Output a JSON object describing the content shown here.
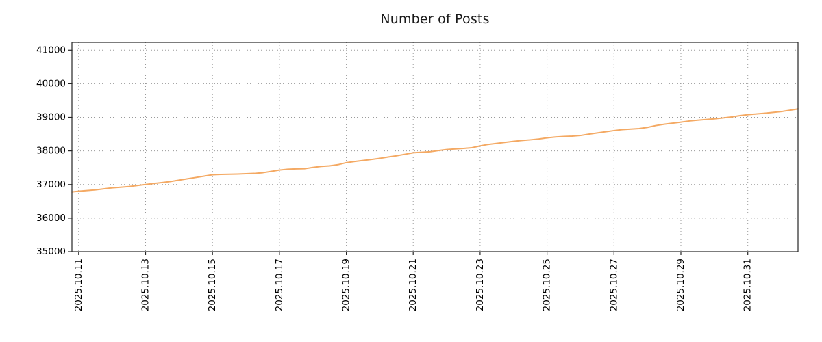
{
  "chart_data": {
    "type": "line",
    "title": "Number of Posts",
    "xlabel": "",
    "ylabel": "",
    "grid": true,
    "legend": false,
    "colors": {
      "line": "#f4a963",
      "grid": "#9a9a9a",
      "axis": "#262626",
      "text": "#000000",
      "background": "#ffffff"
    },
    "x_axis": {
      "unit": "days since 2025.10.11",
      "min": -0.2,
      "max": 21.5,
      "ticks": [
        {
          "t": 0,
          "label": "2025.10.11"
        },
        {
          "t": 2,
          "label": "2025.10.13"
        },
        {
          "t": 4,
          "label": "2025.10.15"
        },
        {
          "t": 6,
          "label": "2025.10.17"
        },
        {
          "t": 8,
          "label": "2025.10.19"
        },
        {
          "t": 10,
          "label": "2025.10.21"
        },
        {
          "t": 12,
          "label": "2025.10.23"
        },
        {
          "t": 14,
          "label": "2025.10.25"
        },
        {
          "t": 16,
          "label": "2025.10.27"
        },
        {
          "t": 18,
          "label": "2025.10.29"
        },
        {
          "t": 20,
          "label": "2025.10.31"
        }
      ]
    },
    "y_axis": {
      "min": 35000,
      "max": 41230,
      "ticks": [
        35000,
        36000,
        37000,
        38000,
        39000,
        40000,
        41000
      ]
    },
    "series": [
      {
        "name": "Number of Posts",
        "points": [
          [
            -0.2,
            36780
          ],
          [
            0,
            36800
          ],
          [
            0.25,
            36820
          ],
          [
            0.5,
            36840
          ],
          [
            0.75,
            36870
          ],
          [
            1,
            36900
          ],
          [
            1.25,
            36920
          ],
          [
            1.5,
            36940
          ],
          [
            1.75,
            36970
          ],
          [
            2,
            37000
          ],
          [
            2.25,
            37030
          ],
          [
            2.5,
            37060
          ],
          [
            2.75,
            37090
          ],
          [
            3,
            37130
          ],
          [
            3.25,
            37170
          ],
          [
            3.5,
            37210
          ],
          [
            3.75,
            37250
          ],
          [
            4,
            37290
          ],
          [
            4.25,
            37300
          ],
          [
            4.5,
            37305
          ],
          [
            4.75,
            37310
          ],
          [
            5,
            37320
          ],
          [
            5.25,
            37330
          ],
          [
            5.5,
            37350
          ],
          [
            5.75,
            37390
          ],
          [
            6,
            37430
          ],
          [
            6.25,
            37455
          ],
          [
            6.5,
            37465
          ],
          [
            6.75,
            37470
          ],
          [
            7,
            37510
          ],
          [
            7.25,
            37540
          ],
          [
            7.5,
            37555
          ],
          [
            7.75,
            37590
          ],
          [
            8,
            37650
          ],
          [
            8.25,
            37685
          ],
          [
            8.5,
            37715
          ],
          [
            8.75,
            37745
          ],
          [
            9,
            37780
          ],
          [
            9.25,
            37820
          ],
          [
            9.5,
            37855
          ],
          [
            9.75,
            37900
          ],
          [
            10,
            37945
          ],
          [
            10.25,
            37960
          ],
          [
            10.5,
            37975
          ],
          [
            10.75,
            38010
          ],
          [
            11,
            38040
          ],
          [
            11.25,
            38060
          ],
          [
            11.5,
            38075
          ],
          [
            11.75,
            38095
          ],
          [
            12,
            38150
          ],
          [
            12.25,
            38195
          ],
          [
            12.5,
            38225
          ],
          [
            12.75,
            38255
          ],
          [
            13,
            38285
          ],
          [
            13.25,
            38310
          ],
          [
            13.5,
            38330
          ],
          [
            13.75,
            38355
          ],
          [
            14,
            38390
          ],
          [
            14.25,
            38415
          ],
          [
            14.5,
            38430
          ],
          [
            14.75,
            38440
          ],
          [
            15,
            38460
          ],
          [
            15.25,
            38500
          ],
          [
            15.5,
            38535
          ],
          [
            15.75,
            38570
          ],
          [
            16,
            38605
          ],
          [
            16.25,
            38635
          ],
          [
            16.5,
            38650
          ],
          [
            16.75,
            38665
          ],
          [
            17,
            38700
          ],
          [
            17.25,
            38755
          ],
          [
            17.5,
            38795
          ],
          [
            17.75,
            38825
          ],
          [
            18,
            38855
          ],
          [
            18.25,
            38890
          ],
          [
            18.5,
            38915
          ],
          [
            18.75,
            38935
          ],
          [
            19,
            38955
          ],
          [
            19.25,
            38980
          ],
          [
            19.5,
            39010
          ],
          [
            19.75,
            39050
          ],
          [
            20,
            39080
          ],
          [
            20.25,
            39100
          ],
          [
            20.5,
            39120
          ],
          [
            20.75,
            39145
          ],
          [
            21,
            39170
          ],
          [
            21.25,
            39210
          ],
          [
            21.5,
            39250
          ]
        ]
      }
    ]
  }
}
